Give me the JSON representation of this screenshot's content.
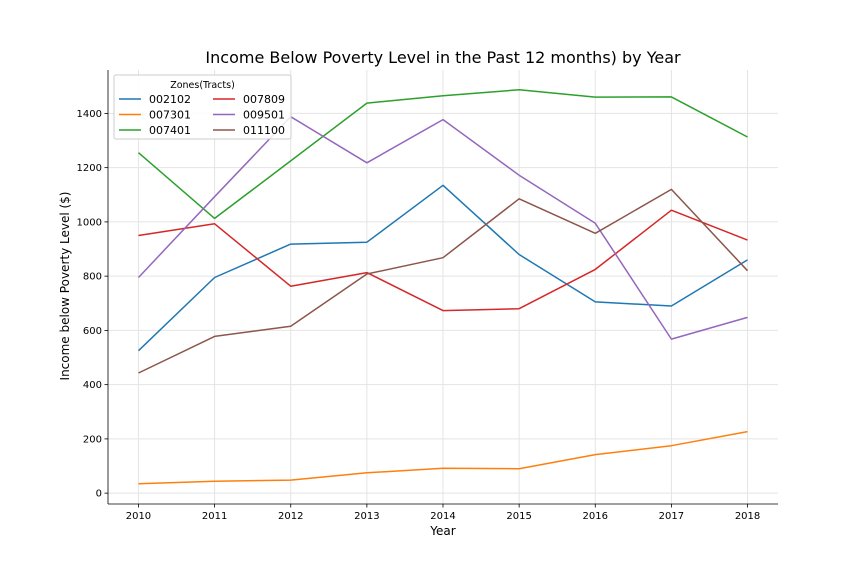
{
  "chart_data": {
    "type": "line",
    "title": "Income Below Poverty Level in the Past 12 months) by Year",
    "xlabel": "Year",
    "ylabel": "Income below Poverty Level ($)",
    "x": [
      2010,
      2011,
      2012,
      2013,
      2014,
      2015,
      2016,
      2017,
      2018
    ],
    "xlim": [
      2009.6,
      2018.4
    ],
    "ylim": [
      -40,
      1560
    ],
    "yticks": [
      0,
      200,
      400,
      600,
      800,
      1000,
      1200,
      1400
    ],
    "grid": true,
    "legend": {
      "title": "Zones(Tracts)",
      "placement": "top-left",
      "columns": 2
    },
    "series": [
      {
        "name": "002102",
        "color": "#1f77b4",
        "values": [
          525,
          795,
          918,
          925,
          1135,
          880,
          705,
          690,
          860
        ]
      },
      {
        "name": "007301",
        "color": "#ff7f0e",
        "values": [
          35,
          44,
          48,
          75,
          92,
          90,
          142,
          175,
          227
        ]
      },
      {
        "name": "007401",
        "color": "#2ca02c",
        "values": [
          1255,
          1013,
          1225,
          1438,
          1465,
          1487,
          1460,
          1461,
          1313
        ]
      },
      {
        "name": "007809",
        "color": "#d62728",
        "values": [
          950,
          993,
          763,
          813,
          673,
          680,
          825,
          1043,
          933
        ]
      },
      {
        "name": "009501",
        "color": "#9467bd",
        "values": [
          795,
          1093,
          1388,
          1218,
          1377,
          1172,
          995,
          568,
          648
        ]
      },
      {
        "name": "011100",
        "color": "#8c564b",
        "values": [
          443,
          578,
          615,
          808,
          868,
          1085,
          958,
          1120,
          820
        ]
      }
    ]
  }
}
